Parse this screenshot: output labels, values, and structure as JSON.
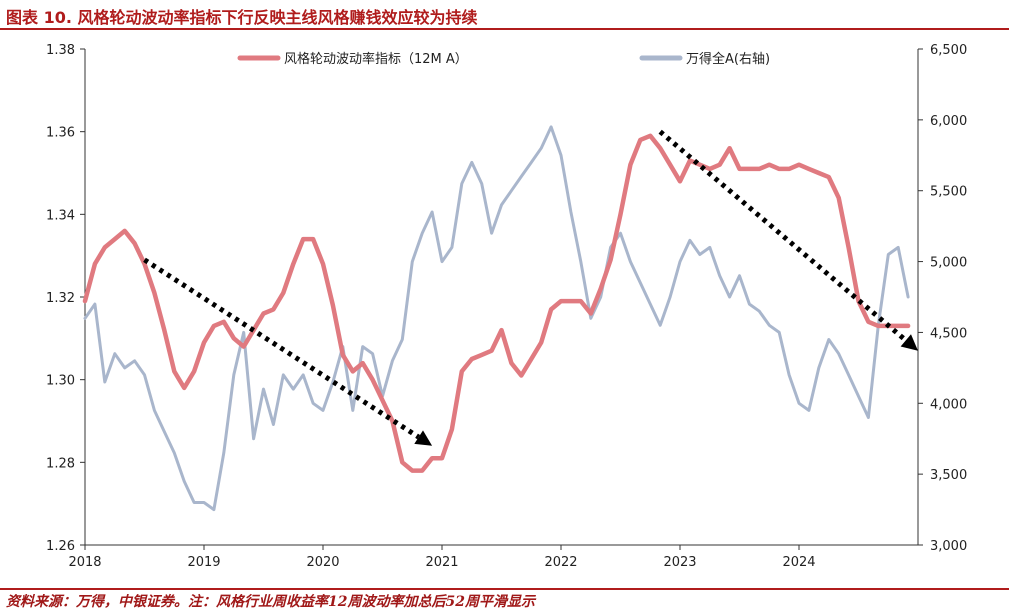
{
  "title": "图表 10. 风格轮动波动率指标下行反映主线风格赚钱效应较为持续",
  "source": "资料来源：万得，中银证券。注：风格行业周收益率12周波动率加总后52周平滑显示",
  "colors": {
    "accent": "#b01c1c",
    "series_left": "#e07a80",
    "series_right": "#a9b6cc",
    "arrow": "#000000"
  },
  "chart_data": {
    "type": "line",
    "xlim": [
      "2018-01",
      "2025-01"
    ],
    "x_ticks": [
      "2018",
      "2019",
      "2020",
      "2021",
      "2022",
      "2023",
      "2024"
    ],
    "y_left": {
      "lim": [
        1.26,
        1.38
      ],
      "ticks": [
        "1.26",
        "1.28",
        "1.30",
        "1.32",
        "1.34",
        "1.36",
        "1.38"
      ]
    },
    "y_right": {
      "lim": [
        3000,
        6500
      ],
      "ticks": [
        "3,000",
        "3,500",
        "4,000",
        "4,500",
        "5,000",
        "5,500",
        "6,000",
        "6,500"
      ]
    },
    "grid": false,
    "legend_position": "top",
    "series": [
      {
        "name": "风格轮动波动率指标（12M A）",
        "axis": "left",
        "points": [
          [
            "2018-01",
            1.319
          ],
          [
            "2018-02",
            1.328
          ],
          [
            "2018-03",
            1.332
          ],
          [
            "2018-04",
            1.334
          ],
          [
            "2018-05",
            1.336
          ],
          [
            "2018-06",
            1.333
          ],
          [
            "2018-07",
            1.328
          ],
          [
            "2018-08",
            1.321
          ],
          [
            "2018-09",
            1.312
          ],
          [
            "2018-10",
            1.302
          ],
          [
            "2018-11",
            1.298
          ],
          [
            "2018-12",
            1.302
          ],
          [
            "2019-01",
            1.309
          ],
          [
            "2019-02",
            1.313
          ],
          [
            "2019-03",
            1.314
          ],
          [
            "2019-04",
            1.31
          ],
          [
            "2019-05",
            1.308
          ],
          [
            "2019-06",
            1.312
          ],
          [
            "2019-07",
            1.316
          ],
          [
            "2019-08",
            1.317
          ],
          [
            "2019-09",
            1.321
          ],
          [
            "2019-10",
            1.328
          ],
          [
            "2019-11",
            1.334
          ],
          [
            "2019-12",
            1.334
          ],
          [
            "2020-01",
            1.328
          ],
          [
            "2020-02",
            1.318
          ],
          [
            "2020-03",
            1.306
          ],
          [
            "2020-04",
            1.302
          ],
          [
            "2020-05",
            1.304
          ],
          [
            "2020-06",
            1.3
          ],
          [
            "2020-07",
            1.295
          ],
          [
            "2020-08",
            1.29
          ],
          [
            "2020-09",
            1.28
          ],
          [
            "2020-10",
            1.278
          ],
          [
            "2020-11",
            1.278
          ],
          [
            "2020-12",
            1.281
          ],
          [
            "2021-01",
            1.281
          ],
          [
            "2021-02",
            1.288
          ],
          [
            "2021-03",
            1.302
          ],
          [
            "2021-04",
            1.305
          ],
          [
            "2021-05",
            1.306
          ],
          [
            "2021-06",
            1.307
          ],
          [
            "2021-07",
            1.312
          ],
          [
            "2021-08",
            1.304
          ],
          [
            "2021-09",
            1.301
          ],
          [
            "2021-10",
            1.305
          ],
          [
            "2021-11",
            1.309
          ],
          [
            "2021-12",
            1.317
          ],
          [
            "2022-01",
            1.319
          ],
          [
            "2022-02",
            1.319
          ],
          [
            "2022-03",
            1.319
          ],
          [
            "2022-04",
            1.316
          ],
          [
            "2022-05",
            1.322
          ],
          [
            "2022-06",
            1.329
          ],
          [
            "2022-07",
            1.34
          ],
          [
            "2022-08",
            1.352
          ],
          [
            "2022-09",
            1.358
          ],
          [
            "2022-10",
            1.359
          ],
          [
            "2022-11",
            1.356
          ],
          [
            "2022-12",
            1.352
          ],
          [
            "2023-01",
            1.348
          ],
          [
            "2023-02",
            1.353
          ],
          [
            "2023-03",
            1.352
          ],
          [
            "2023-04",
            1.351
          ],
          [
            "2023-05",
            1.352
          ],
          [
            "2023-06",
            1.356
          ],
          [
            "2023-07",
            1.351
          ],
          [
            "2023-08",
            1.351
          ],
          [
            "2023-09",
            1.351
          ],
          [
            "2023-10",
            1.352
          ],
          [
            "2023-11",
            1.351
          ],
          [
            "2023-12",
            1.351
          ],
          [
            "2024-01",
            1.352
          ],
          [
            "2024-02",
            1.351
          ],
          [
            "2024-03",
            1.35
          ],
          [
            "2024-04",
            1.349
          ],
          [
            "2024-05",
            1.344
          ],
          [
            "2024-06",
            1.332
          ],
          [
            "2024-07",
            1.319
          ],
          [
            "2024-08",
            1.314
          ],
          [
            "2024-09",
            1.313
          ],
          [
            "2024-10",
            1.313
          ],
          [
            "2024-11",
            1.313
          ],
          [
            "2024-12",
            1.313
          ]
        ]
      },
      {
        "name": "万得全A(右轴)",
        "axis": "right",
        "points": [
          [
            "2018-01",
            4600
          ],
          [
            "2018-02",
            4700
          ],
          [
            "2018-03",
            4150
          ],
          [
            "2018-04",
            4350
          ],
          [
            "2018-05",
            4250
          ],
          [
            "2018-06",
            4300
          ],
          [
            "2018-07",
            4200
          ],
          [
            "2018-08",
            3950
          ],
          [
            "2018-09",
            3800
          ],
          [
            "2018-10",
            3650
          ],
          [
            "2018-11",
            3450
          ],
          [
            "2018-12",
            3300
          ],
          [
            "2019-01",
            3300
          ],
          [
            "2019-02",
            3250
          ],
          [
            "2019-03",
            3650
          ],
          [
            "2019-04",
            4200
          ],
          [
            "2019-05",
            4500
          ],
          [
            "2019-06",
            3750
          ],
          [
            "2019-07",
            4100
          ],
          [
            "2019-08",
            3850
          ],
          [
            "2019-09",
            4200
          ],
          [
            "2019-10",
            4100
          ],
          [
            "2019-11",
            4200
          ],
          [
            "2019-12",
            4000
          ],
          [
            "2020-01",
            3950
          ],
          [
            "2020-02",
            4150
          ],
          [
            "2020-03",
            4400
          ],
          [
            "2020-04",
            3950
          ],
          [
            "2020-05",
            4400
          ],
          [
            "2020-06",
            4350
          ],
          [
            "2020-07",
            4050
          ],
          [
            "2020-08",
            4300
          ],
          [
            "2020-09",
            4450
          ],
          [
            "2020-10",
            5000
          ],
          [
            "2020-11",
            5200
          ],
          [
            "2020-12",
            5350
          ],
          [
            "2021-01",
            5000
          ],
          [
            "2021-02",
            5100
          ],
          [
            "2021-03",
            5550
          ],
          [
            "2021-04",
            5700
          ],
          [
            "2021-05",
            5550
          ],
          [
            "2021-06",
            5200
          ],
          [
            "2021-07",
            5400
          ],
          [
            "2021-08",
            5500
          ],
          [
            "2021-09",
            5600
          ],
          [
            "2021-10",
            5700
          ],
          [
            "2021-11",
            5800
          ],
          [
            "2021-12",
            5950
          ],
          [
            "2022-01",
            5750
          ],
          [
            "2022-02",
            5350
          ],
          [
            "2022-03",
            5000
          ],
          [
            "2022-04",
            4600
          ],
          [
            "2022-05",
            4750
          ],
          [
            "2022-06",
            5100
          ],
          [
            "2022-07",
            5200
          ],
          [
            "2022-08",
            5000
          ],
          [
            "2022-09",
            4850
          ],
          [
            "2022-10",
            4700
          ],
          [
            "2022-11",
            4550
          ],
          [
            "2022-12",
            4750
          ],
          [
            "2023-01",
            5000
          ],
          [
            "2023-02",
            5150
          ],
          [
            "2023-03",
            5050
          ],
          [
            "2023-04",
            5100
          ],
          [
            "2023-05",
            4900
          ],
          [
            "2023-06",
            4750
          ],
          [
            "2023-07",
            4900
          ],
          [
            "2023-08",
            4700
          ],
          [
            "2023-09",
            4650
          ],
          [
            "2023-10",
            4550
          ],
          [
            "2023-11",
            4500
          ],
          [
            "2023-12",
            4200
          ],
          [
            "2024-01",
            4000
          ],
          [
            "2024-02",
            3950
          ],
          [
            "2024-03",
            4250
          ],
          [
            "2024-04",
            4450
          ],
          [
            "2024-05",
            4350
          ],
          [
            "2024-06",
            4200
          ],
          [
            "2024-07",
            4050
          ],
          [
            "2024-08",
            3900
          ],
          [
            "2024-09",
            4550
          ],
          [
            "2024-10",
            5050
          ],
          [
            "2024-11",
            5100
          ],
          [
            "2024-12",
            4750
          ]
        ]
      }
    ],
    "annotations": [
      {
        "type": "dotted-arrow",
        "from": [
          "2018-07",
          1.329
        ],
        "to": [
          "2020-12",
          1.284
        ]
      },
      {
        "type": "dotted-arrow",
        "from": [
          "2022-11",
          1.36
        ],
        "to": [
          "2025-01",
          1.307
        ]
      }
    ]
  }
}
